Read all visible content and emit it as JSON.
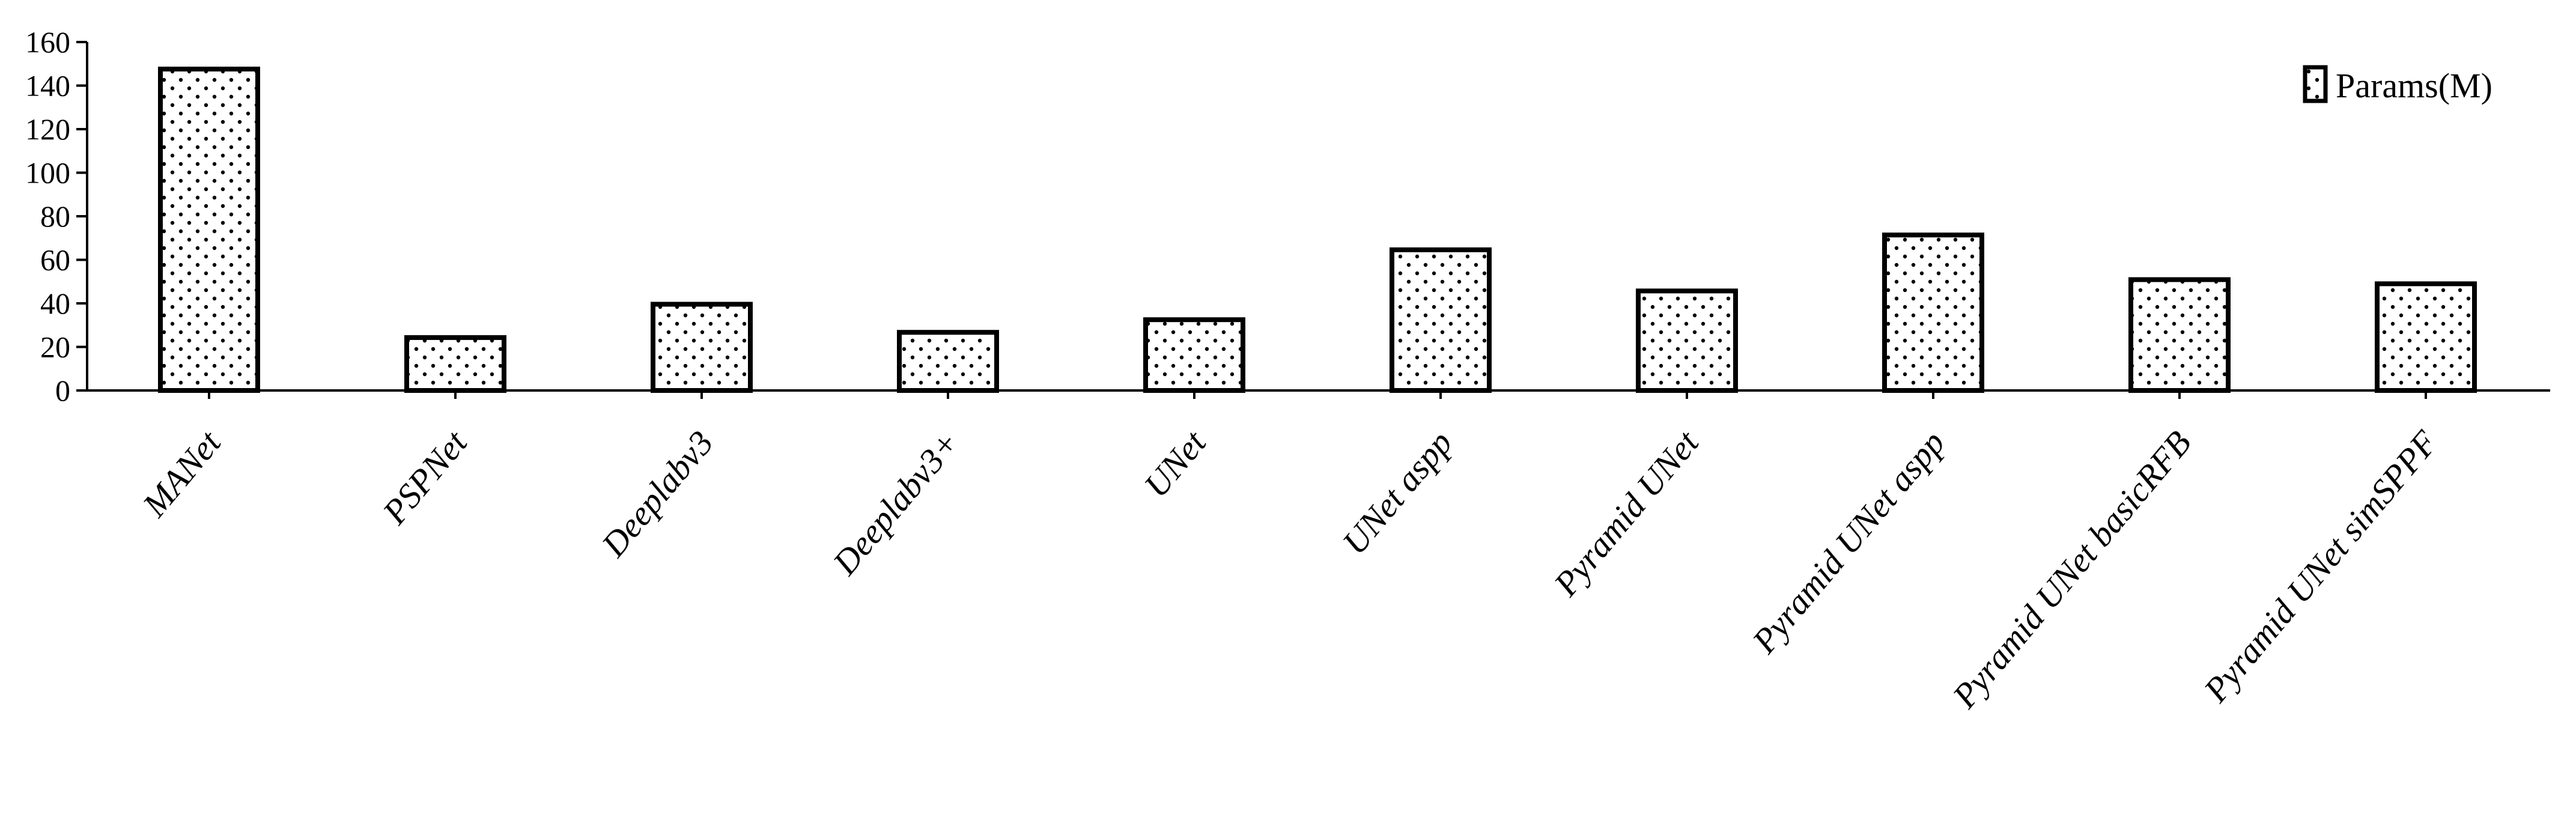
{
  "chart_data": {
    "type": "bar",
    "title": "",
    "xlabel": "",
    "ylabel": "",
    "ylim": [
      0,
      160
    ],
    "yticks": [
      0,
      20,
      40,
      60,
      80,
      100,
      120,
      140,
      160
    ],
    "grid": false,
    "legend_position": "top-right",
    "categories": [
      "MANet",
      "PSPNet",
      "Deeplabv3",
      "Deeplabv3+",
      "UNet",
      "UNet aspp",
      "Pyramid UNet",
      "Pyramid UNet aspp",
      "Pyramid UNet basicRFB",
      "Pyramid UNet simSPPF"
    ],
    "series": [
      {
        "name": "Params(M)",
        "values": [
          147.6,
          24.3,
          39.6,
          26.7,
          32.5,
          64.6,
          45.7,
          71.4,
          50.9,
          49.0
        ],
        "pattern": "dotted",
        "fill": "#ffffff",
        "stroke": "#000000"
      }
    ]
  }
}
